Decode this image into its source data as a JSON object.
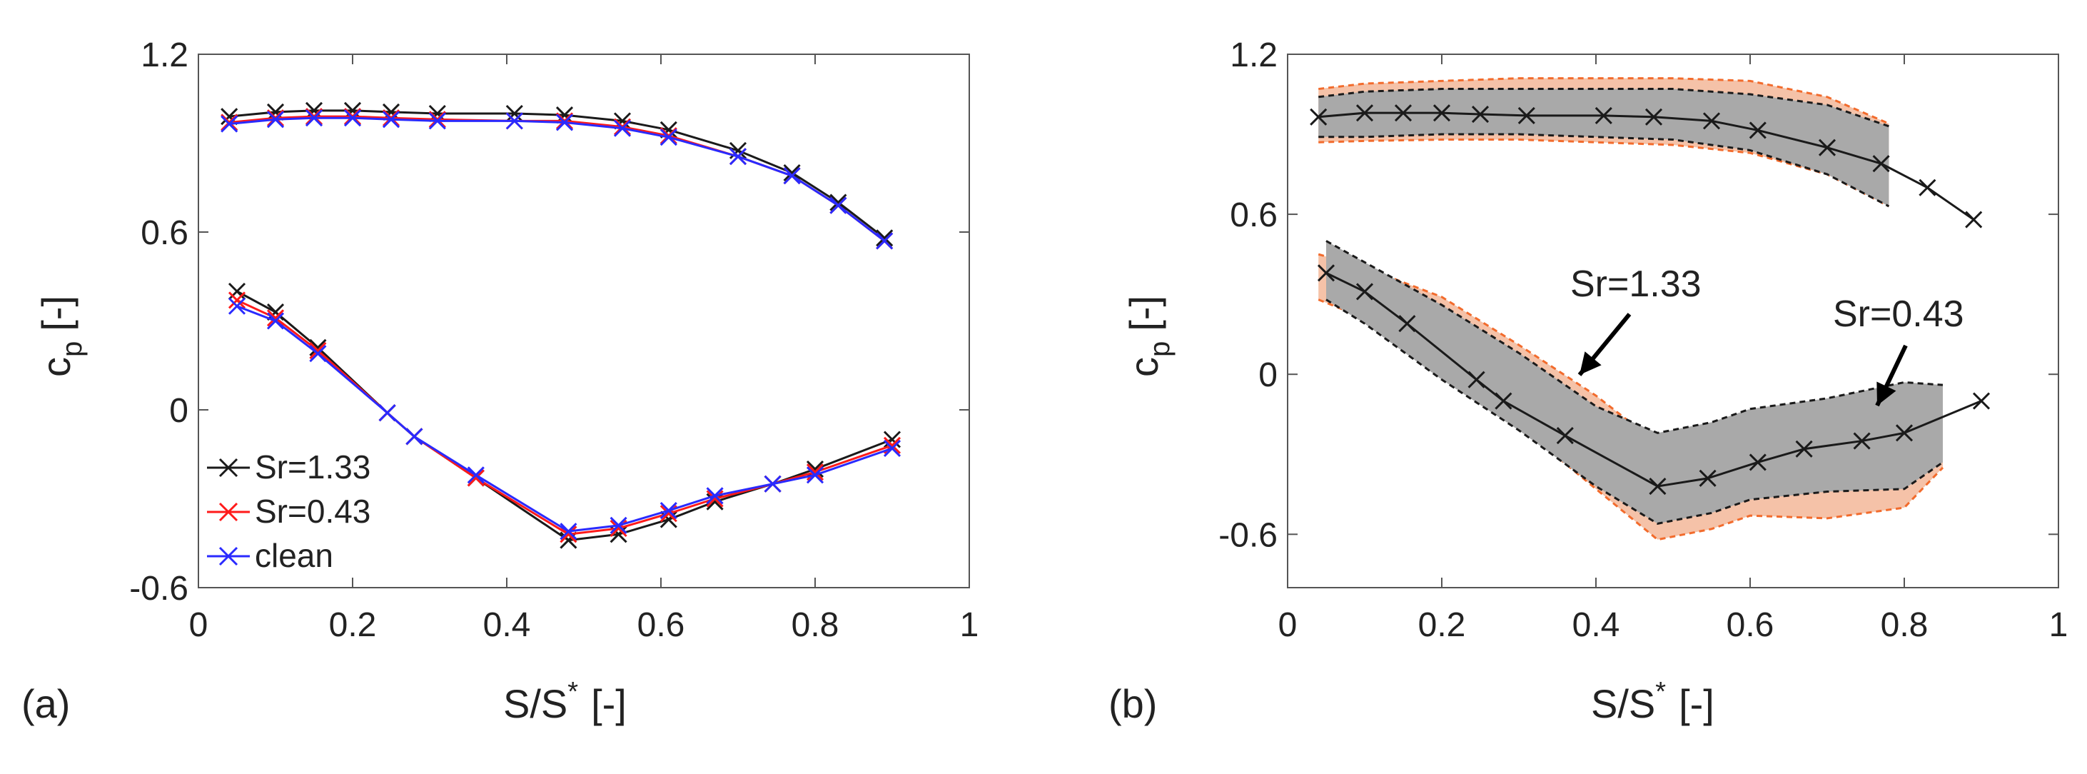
{
  "colors": {
    "sr133": "#1a1a1a",
    "sr043": "#ff1a1a",
    "clean": "#2a2aff",
    "band_sr133": "#a9a9a9",
    "band_sr043": "#f5c2a8",
    "band_edge_sr043": "#f26b2c"
  },
  "chart_data": [
    {
      "panel_label": "(a)",
      "type": "line",
      "xlabel": "S/S",
      "xlabel_sup": "*",
      "xlabel_unit": "[-]",
      "ylabel": "c",
      "ylabel_sub": "p",
      "ylabel_unit": "[-]",
      "xlim": [
        0,
        1
      ],
      "ylim": [
        -0.6,
        1.2
      ],
      "xticks": [
        0,
        0.2,
        0.4,
        0.6,
        0.8,
        1
      ],
      "xtick_labels": [
        "0",
        "0.2",
        "0.4",
        "0.6",
        "0.8",
        "1"
      ],
      "yticks": [
        -0.6,
        0,
        0.6,
        1.2
      ],
      "ytick_labels": [
        "-0.6",
        "0",
        "0.6",
        "1.2"
      ],
      "legend_position": "bottom-left",
      "series": [
        {
          "name": "Sr=1.33",
          "color_key": "sr133",
          "upper": {
            "x": [
              0.04,
              0.1,
              0.15,
              0.2,
              0.25,
              0.31,
              0.41,
              0.475,
              0.55,
              0.61,
              0.7,
              0.77,
              0.83,
              0.89
            ],
            "y": [
              0.99,
              1.005,
              1.01,
              1.01,
              1.005,
              1.0,
              1.0,
              0.995,
              0.975,
              0.945,
              0.875,
              0.8,
              0.7,
              0.58
            ]
          },
          "lower": {
            "x": [
              0.05,
              0.1,
              0.155,
              0.245,
              0.28,
              0.36,
              0.48,
              0.545,
              0.61,
              0.67,
              0.745,
              0.8,
              0.9
            ],
            "y": [
              0.4,
              0.33,
              0.21,
              -0.01,
              -0.09,
              -0.23,
              -0.44,
              -0.42,
              -0.37,
              -0.31,
              -0.25,
              -0.2,
              -0.1
            ]
          }
        },
        {
          "name": "Sr=0.43",
          "color_key": "sr043",
          "upper": {
            "x": [
              0.04,
              0.1,
              0.15,
              0.2,
              0.25,
              0.31,
              0.41,
              0.475,
              0.55,
              0.61,
              0.7,
              0.77,
              0.83,
              0.89
            ],
            "y": [
              0.97,
              0.985,
              0.99,
              0.99,
              0.985,
              0.98,
              0.975,
              0.975,
              0.955,
              0.925,
              0.855,
              0.79,
              0.69,
              0.57
            ]
          },
          "lower": {
            "x": [
              0.05,
              0.1,
              0.155,
              0.245,
              0.28,
              0.36,
              0.48,
              0.545,
              0.61,
              0.67,
              0.745,
              0.8,
              0.9
            ],
            "y": [
              0.37,
              0.31,
              0.2,
              -0.01,
              -0.09,
              -0.23,
              -0.42,
              -0.4,
              -0.35,
              -0.3,
              -0.25,
              -0.21,
              -0.12
            ]
          }
        },
        {
          "name": "clean",
          "color_key": "clean",
          "upper": {
            "x": [
              0.04,
              0.1,
              0.15,
              0.2,
              0.25,
              0.31,
              0.41,
              0.475,
              0.55,
              0.61,
              0.7,
              0.77,
              0.83,
              0.89
            ],
            "y": [
              0.965,
              0.98,
              0.985,
              0.985,
              0.98,
              0.975,
              0.975,
              0.97,
              0.95,
              0.92,
              0.855,
              0.79,
              0.69,
              0.57
            ]
          },
          "lower": {
            "x": [
              0.05,
              0.1,
              0.155,
              0.245,
              0.28,
              0.36,
              0.48,
              0.545,
              0.61,
              0.67,
              0.745,
              0.8,
              0.9
            ],
            "y": [
              0.35,
              0.3,
              0.19,
              -0.01,
              -0.09,
              -0.22,
              -0.41,
              -0.39,
              -0.34,
              -0.29,
              -0.25,
              -0.22,
              -0.13
            ]
          }
        }
      ]
    },
    {
      "panel_label": "(b)",
      "type": "area",
      "xlabel": "S/S",
      "xlabel_sup": "*",
      "xlabel_unit": "[-]",
      "ylabel": "c",
      "ylabel_sub": "p",
      "ylabel_unit": "[-]",
      "xlim": [
        0,
        1
      ],
      "ylim": [
        -0.8,
        1.2
      ],
      "xticks": [
        0,
        0.2,
        0.4,
        0.6,
        0.8,
        1
      ],
      "xtick_labels": [
        "0",
        "0.2",
        "0.4",
        "0.6",
        "0.8",
        "1"
      ],
      "yticks": [
        -0.6,
        0,
        0.6,
        1.2
      ],
      "ytick_labels": [
        "-0.6",
        "0",
        "0.6",
        "1.2"
      ],
      "mean_line": {
        "upper": {
          "x": [
            0.04,
            0.1,
            0.15,
            0.2,
            0.25,
            0.31,
            0.41,
            0.475,
            0.55,
            0.61,
            0.7,
            0.77,
            0.83,
            0.89
          ],
          "y": [
            0.965,
            0.98,
            0.98,
            0.98,
            0.975,
            0.97,
            0.97,
            0.965,
            0.95,
            0.915,
            0.85,
            0.79,
            0.7,
            0.58
          ]
        },
        "lower": {
          "x": [
            0.05,
            0.1,
            0.155,
            0.245,
            0.28,
            0.36,
            0.48,
            0.545,
            0.61,
            0.67,
            0.745,
            0.8,
            0.9
          ],
          "y": [
            0.38,
            0.31,
            0.19,
            -0.02,
            -0.1,
            -0.23,
            -0.42,
            -0.39,
            -0.33,
            -0.28,
            -0.25,
            -0.22,
            -0.1
          ]
        }
      },
      "bands": [
        {
          "name": "Sr=0.43",
          "color_key": "band_sr043",
          "edge_color_key": "band_edge_sr043",
          "upper": {
            "x": [
              0.04,
              0.1,
              0.2,
              0.3,
              0.4,
              0.5,
              0.6,
              0.7,
              0.78
            ],
            "lo": [
              0.87,
              0.875,
              0.88,
              0.88,
              0.87,
              0.86,
              0.83,
              0.75,
              0.63
            ],
            "hi": [
              1.07,
              1.09,
              1.1,
              1.11,
              1.11,
              1.11,
              1.1,
              1.04,
              0.94
            ]
          },
          "lower": {
            "x": [
              0.04,
              0.1,
              0.2,
              0.3,
              0.4,
              0.48,
              0.55,
              0.6,
              0.7,
              0.8,
              0.85
            ],
            "lo": [
              0.28,
              0.21,
              0.0,
              -0.19,
              -0.43,
              -0.62,
              -0.58,
              -0.53,
              -0.54,
              -0.5,
              -0.35
            ],
            "hi": [
              0.45,
              0.4,
              0.29,
              0.11,
              -0.08,
              -0.26,
              -0.24,
              -0.2,
              -0.12,
              -0.06,
              -0.06
            ]
          }
        },
        {
          "name": "Sr=1.33",
          "color_key": "band_sr133",
          "edge_color_key": "sr133",
          "upper": {
            "x": [
              0.04,
              0.1,
              0.2,
              0.3,
              0.4,
              0.5,
              0.6,
              0.7,
              0.78
            ],
            "lo": [
              0.89,
              0.89,
              0.9,
              0.9,
              0.89,
              0.88,
              0.84,
              0.75,
              0.63
            ],
            "hi": [
              1.04,
              1.06,
              1.07,
              1.07,
              1.07,
              1.07,
              1.05,
              1.01,
              0.93
            ]
          },
          "lower": {
            "x": [
              0.05,
              0.1,
              0.2,
              0.3,
              0.4,
              0.48,
              0.55,
              0.6,
              0.7,
              0.8,
              0.85
            ],
            "lo": [
              0.28,
              0.19,
              -0.02,
              -0.21,
              -0.42,
              -0.56,
              -0.52,
              -0.47,
              -0.44,
              -0.43,
              -0.33
            ],
            "hi": [
              0.5,
              0.42,
              0.26,
              0.08,
              -0.12,
              -0.22,
              -0.18,
              -0.13,
              -0.09,
              -0.03,
              -0.04
            ]
          }
        }
      ],
      "annotations": [
        {
          "text": "Sr=1.33",
          "arrow_to": [
            0.36,
            -0.02
          ]
        },
        {
          "text": "Sr=0.43",
          "arrow_to": [
            0.755,
            -0.14
          ]
        }
      ]
    }
  ]
}
